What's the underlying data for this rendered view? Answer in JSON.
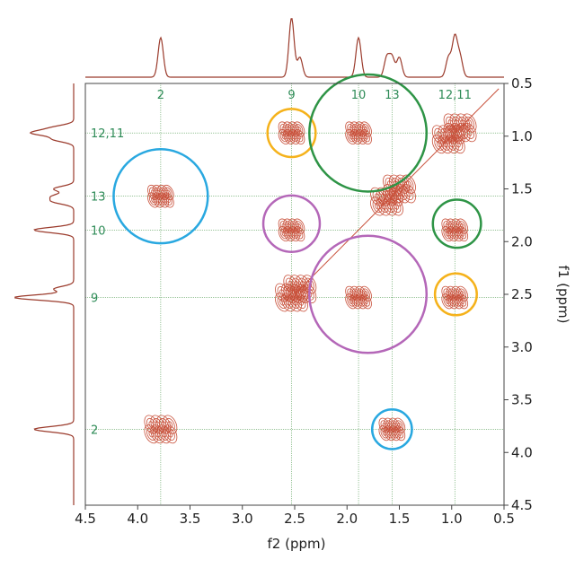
{
  "chart_data": {
    "type": "contour",
    "xlabel": "f2 (ppm)",
    "ylabel": "f1 (ppm)",
    "xlim": [
      4.5,
      0.5
    ],
    "ylim": [
      4.5,
      0.5
    ],
    "x_ticks": [
      "4.5",
      "4.0",
      "3.5",
      "3.0",
      "2.5",
      "2.0",
      "1.5",
      "1.0",
      "0.5"
    ],
    "y_ticks": [
      "0.5",
      "1.0",
      "1.5",
      "2.0",
      "2.5",
      "3.0",
      "3.5",
      "4.0",
      "4.5"
    ],
    "peak_labels": [
      {
        "text": "2",
        "ppm": 3.78
      },
      {
        "text": "9",
        "ppm": 2.53
      },
      {
        "text": "10",
        "ppm": 1.89
      },
      {
        "text": "13",
        "ppm": 1.57
      },
      {
        "text": "12,11",
        "ppm": 0.97
      }
    ],
    "diagonal_peaks": [
      {
        "x": 3.78,
        "y": 3.78
      },
      {
        "x": 2.53,
        "y": 2.53
      },
      {
        "x": 2.45,
        "y": 2.45
      },
      {
        "x": 1.62,
        "y": 1.62
      },
      {
        "x": 1.5,
        "y": 1.5
      },
      {
        "x": 1.03,
        "y": 1.03
      },
      {
        "x": 0.92,
        "y": 0.92
      }
    ],
    "cross_peaks": [
      {
        "x": 3.78,
        "y": 1.57,
        "group": "2-13"
      },
      {
        "x": 1.57,
        "y": 3.78,
        "group": "2-13"
      },
      {
        "x": 2.53,
        "y": 0.97,
        "group": "9-12"
      },
      {
        "x": 0.97,
        "y": 2.53,
        "group": "9-12"
      },
      {
        "x": 1.89,
        "y": 0.97,
        "group": "10-12"
      },
      {
        "x": 0.97,
        "y": 1.89,
        "group": "10-12"
      },
      {
        "x": 2.53,
        "y": 1.89,
        "group": "9-10"
      },
      {
        "x": 1.89,
        "y": 2.53,
        "group": "9-10"
      }
    ],
    "highlight_regions": [
      {
        "color": "#29a8e0",
        "cx": 3.78,
        "cy": 1.57,
        "rx": 0.45,
        "ry": 0.23
      },
      {
        "color": "#29a8e0",
        "cx": 1.57,
        "cy": 3.78,
        "rx": 0.19,
        "ry": 0.45
      },
      {
        "color": "#f5b21b",
        "cx": 2.53,
        "cy": 0.97,
        "rx": 0.23,
        "ry": 0.23
      },
      {
        "color": "#f5b21b",
        "cx": 0.96,
        "cy": 2.5,
        "rx": 0.2,
        "ry": 0.21
      },
      {
        "color": "#2e9446",
        "cx": 1.8,
        "cy": 0.97,
        "rx": 0.56,
        "ry": 0.27
      },
      {
        "color": "#2e9446",
        "cx": 0.95,
        "cy": 1.83,
        "rx": 0.23,
        "ry": 0.47
      },
      {
        "color": "#b467b8",
        "cx": 2.53,
        "cy": 1.83,
        "rx": 0.27,
        "ry": 0.47
      },
      {
        "color": "#b467b8",
        "cx": 1.8,
        "cy": 2.5,
        "rx": 0.56,
        "ry": 0.27
      }
    ],
    "grid": false,
    "contour_color": "#c8503a",
    "guide_color": "#5aa05a",
    "label_color": "#2e8b57"
  }
}
